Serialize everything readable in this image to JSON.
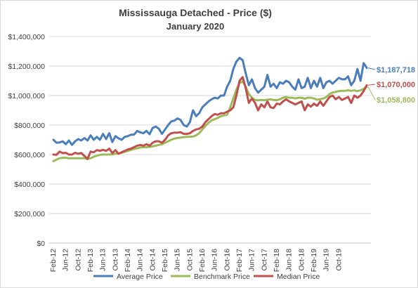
{
  "chart_data": {
    "type": "line",
    "title": "Mississauga Detached - Price ($)",
    "subtitle": "January 2020",
    "xlabel": "",
    "ylabel": "",
    "ylim": [
      0,
      1400000
    ],
    "y_ticks": [
      "$0",
      "$200,000",
      "$400,000",
      "$600,000",
      "$800,000",
      "$1,000,000",
      "$1,200,000",
      "$1,400,000"
    ],
    "x_tick_labels": [
      "Feb-12",
      "Jun-12",
      "Oct-12",
      "Feb-13",
      "Jun-13",
      "Oct-13",
      "Feb-14",
      "Jun-14",
      "Oct-14",
      "Feb-15",
      "Jun-15",
      "Oct-15",
      "Feb-16",
      "Jun-16",
      "Oct-16",
      "Feb-17",
      "Jun-17",
      "Oct-17",
      "Feb-18",
      "Jun-18",
      "Oct-18",
      "Feb-19",
      "Jun-19",
      "Oct-19"
    ],
    "x_start": "Feb-12",
    "x_end": "Jan-20",
    "grid": "horizontal",
    "legend_placement": "bottom",
    "series": [
      {
        "name": "Average Price",
        "color": "#4a7ebb",
        "end_label": "$1,187,718",
        "values": [
          700000,
          680000,
          682000,
          690000,
          670000,
          695000,
          665000,
          690000,
          705000,
          695000,
          712000,
          695000,
          730000,
          700000,
          720000,
          700000,
          740000,
          705000,
          745000,
          685000,
          725000,
          710000,
          700000,
          720000,
          725000,
          735000,
          735000,
          760000,
          750000,
          745000,
          760000,
          738000,
          780000,
          790000,
          775000,
          740000,
          770000,
          800000,
          825000,
          830000,
          845000,
          835000,
          800000,
          790000,
          820000,
          900000,
          860000,
          880000,
          920000,
          940000,
          960000,
          975000,
          985000,
          980000,
          1000000,
          1000000,
          1060000,
          1100000,
          1180000,
          1230000,
          1255000,
          1240000,
          1150000,
          1070000,
          1110000,
          1050000,
          1020000,
          1040000,
          1060000,
          1140000,
          1060000,
          1080000,
          1050000,
          1090000,
          1080000,
          1100000,
          1090000,
          1060000,
          1040000,
          1110000,
          1050000,
          1060000,
          1120000,
          1050000,
          1100000,
          1060000,
          1120000,
          1050000,
          1090000,
          1100000,
          1080000,
          1100000,
          1120000,
          1110000,
          1110000,
          1130000,
          1070000,
          1100000,
          1180000,
          1100000,
          1220000,
          1187718
        ]
      },
      {
        "name": "Benchmark Price",
        "color": "#9bbb59",
        "end_label": "$1,058,800",
        "values": [
          555000,
          565000,
          575000,
          578000,
          578000,
          575000,
          575000,
          575000,
          575000,
          575000,
          575000,
          570000,
          575000,
          585000,
          592000,
          598000,
          600000,
          600000,
          600000,
          602000,
          605000,
          608000,
          612000,
          618000,
          625000,
          632000,
          638000,
          642000,
          648000,
          650000,
          650000,
          652000,
          655000,
          660000,
          665000,
          670000,
          680000,
          690000,
          700000,
          708000,
          712000,
          715000,
          718000,
          720000,
          720000,
          722000,
          730000,
          745000,
          770000,
          795000,
          815000,
          832000,
          840000,
          848000,
          860000,
          865000,
          870000,
          920000,
          980000,
          1040000,
          1085000,
          1095000,
          1060000,
          1010000,
          985000,
          970000,
          968000,
          970000,
          968000,
          972000,
          975000,
          970000,
          968000,
          975000,
          985000,
          990000,
          985000,
          985000,
          980000,
          985000,
          985000,
          978000,
          985000,
          985000,
          980000,
          972000,
          975000,
          980000,
          990000,
          1010000,
          1020000,
          1025000,
          1030000,
          1032000,
          1032000,
          1035000,
          1032000,
          1035000,
          1030000,
          1035000,
          1045000,
          1058800
        ]
      },
      {
        "name": "Median Price",
        "color": "#c0504d",
        "end_label": "$1,070,000",
        "values": [
          600000,
          598000,
          620000,
          610000,
          612000,
          600000,
          600000,
          612000,
          605000,
          610000,
          590000,
          570000,
          620000,
          615000,
          630000,
          625000,
          632000,
          625000,
          640000,
          610000,
          630000,
          605000,
          615000,
          625000,
          635000,
          640000,
          650000,
          660000,
          665000,
          660000,
          670000,
          660000,
          680000,
          690000,
          690000,
          680000,
          700000,
          730000,
          745000,
          748000,
          748000,
          752000,
          740000,
          740000,
          745000,
          760000,
          770000,
          775000,
          790000,
          820000,
          840000,
          860000,
          875000,
          870000,
          880000,
          880000,
          890000,
          900000,
          920000,
          1000000,
          1100000,
          1125000,
          1050000,
          950000,
          980000,
          950000,
          900000,
          940000,
          920000,
          960000,
          920000,
          915000,
          945000,
          940000,
          960000,
          975000,
          960000,
          950000,
          940000,
          950000,
          960000,
          900000,
          940000,
          925000,
          945000,
          930000,
          960000,
          930000,
          960000,
          990000,
          1000000,
          975000,
          990000,
          970000,
          980000,
          990000,
          950000,
          1000000,
          985000,
          1000000,
          1030000,
          1070000
        ]
      }
    ]
  }
}
